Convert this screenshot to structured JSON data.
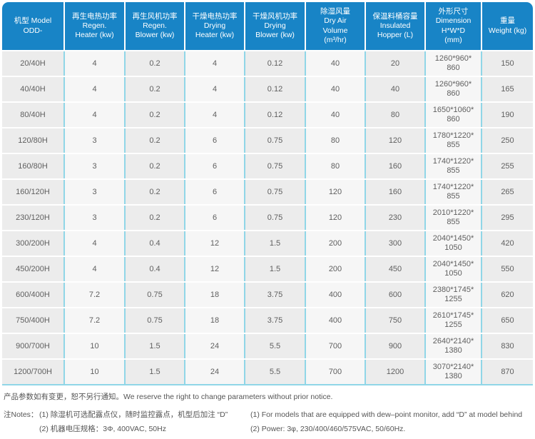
{
  "colors": {
    "header_bg": "#1884c6",
    "column_separator": "#90d6e7",
    "column_shade_odd": "#ececec",
    "column_shade_even": "#f6f6f6",
    "body_text": "#5f5f5f"
  },
  "table": {
    "headers": [
      "机型 Model\nODD-",
      "再生电热功率\nRegen.\nHeater (kw)",
      "再生风机功率\nRegen.\nBlower (kw)",
      "干燥电热功率\nDrying\nHeater (kw)",
      "干燥风机功率\nDrying\nBlower (kw)",
      "除湿风量\nDry Air\nVolume\n(m³/hr)",
      "保温料桶容量\nInsulated\nHopper (L)",
      "外形尺寸\nDimension\nH*W*D\n(mm)",
      "重量\nWeight (kg)"
    ],
    "rows": [
      [
        "20/40H",
        "4",
        "0.2",
        "4",
        "0.12",
        "40",
        "20",
        "1260*960*\n860",
        "150"
      ],
      [
        "40/40H",
        "4",
        "0.2",
        "4",
        "0.12",
        "40",
        "40",
        "1260*960*\n860",
        "165"
      ],
      [
        "80/40H",
        "4",
        "0.2",
        "4",
        "0.12",
        "40",
        "80",
        "1650*1060*\n860",
        "190"
      ],
      [
        "120/80H",
        "3",
        "0.2",
        "6",
        "0.75",
        "80",
        "120",
        "1780*1220*\n855",
        "250"
      ],
      [
        "160/80H",
        "3",
        "0.2",
        "6",
        "0.75",
        "80",
        "160",
        "1740*1220*\n855",
        "255"
      ],
      [
        "160/120H",
        "3",
        "0.2",
        "6",
        "0.75",
        "120",
        "160",
        "1740*1220*\n855",
        "265"
      ],
      [
        "230/120H",
        "3",
        "0.2",
        "6",
        "0.75",
        "120",
        "230",
        "2010*1220*\n855",
        "295"
      ],
      [
        "300/200H",
        "4",
        "0.4",
        "12",
        "1.5",
        "200",
        "300",
        "2040*1450*\n1050",
        "420"
      ],
      [
        "450/200H",
        "4",
        "0.4",
        "12",
        "1.5",
        "200",
        "450",
        "2040*1450*\n1050",
        "550"
      ],
      [
        "600/400H",
        "7.2",
        "0.75",
        "18",
        "3.75",
        "400",
        "600",
        "2380*1745*\n1255",
        "620"
      ],
      [
        "750/400H",
        "7.2",
        "0.75",
        "18",
        "3.75",
        "400",
        "750",
        "2610*1745*\n1255",
        "650"
      ],
      [
        "900/700H",
        "10",
        "1.5",
        "24",
        "5.5",
        "700",
        "900",
        "2640*2140*\n1380",
        "830"
      ],
      [
        "1200/700H",
        "10",
        "1.5",
        "24",
        "5.5",
        "700",
        "1200",
        "3070*2140*\n1380",
        "870"
      ]
    ]
  },
  "footer": {
    "notice": "产品参数如有变更，恕不另行通知。We reserve the right to change parameters without prior notice.",
    "notes_label": "注Notes：",
    "cn_notes": [
      "(1) 除湿机可选配露点仪，随时监控露点，机型后加注 “D”",
      "(2) 机器电压规格：3Φ, 400VAC, 50Hz"
    ],
    "en_notes": [
      "(1) For models that are equipped with dew–point monitor, add “D” at model behind",
      "(2) Power: 3φ, 230/400/460/575VAC, 50/60Hz."
    ]
  }
}
